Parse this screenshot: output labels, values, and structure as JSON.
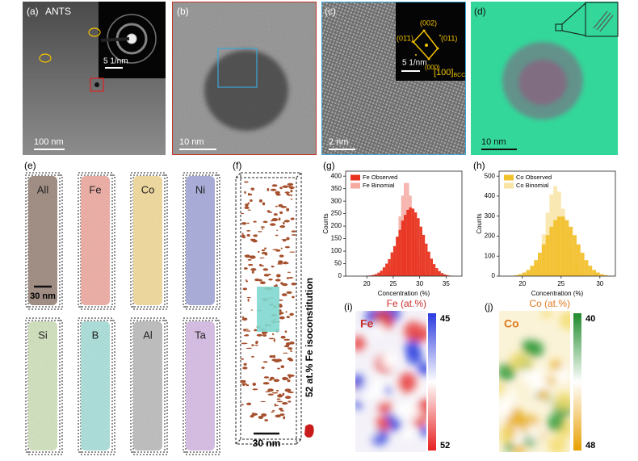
{
  "panel_labels": [
    "(a)",
    "(b)",
    "(c)",
    "(d)",
    "(e)",
    "(f)",
    "(g)",
    "(h)",
    "(i)",
    "(j)"
  ],
  "a": {
    "title": "ANTS",
    "scale_bar": "100 nm",
    "inset_scale_bar": "5 1/nm"
  },
  "b": {
    "scale_bar": "10 nm"
  },
  "c": {
    "scale_bar": "2 nm",
    "inset_scale_bar": "5 1/nm",
    "spots": [
      "(002)",
      "(01̄1)",
      "(011)",
      "(000)"
    ],
    "zone_axis": "[100]",
    "zone_subscript": "BCC"
  },
  "d": {
    "scale_bar": "10 nm"
  },
  "e": {
    "elements": [
      "All",
      "Fe",
      "Co",
      "Ni",
      "Si",
      "B",
      "Al",
      "Ta"
    ],
    "scale_bar": "30 nm"
  },
  "f": {
    "legend": "52 at.% Fe isoconstitution",
    "scale_bar": "30 nm"
  },
  "i": {
    "element": "Fe",
    "colorbar_label": "Fe (at.%)",
    "colorbar_ticks": [
      45,
      52
    ]
  },
  "j": {
    "element": "Co",
    "colorbar_label": "Co (at.%)",
    "colorbar_ticks": [
      40,
      48
    ]
  },
  "chart_data": [
    {
      "type": "histogram",
      "xlabel": "Concentration (%)",
      "ylabel": "Counts",
      "bins": [
        18,
        18.5,
        19,
        19.5,
        20,
        20.5,
        21,
        21.5,
        22,
        22.5,
        23,
        23.5,
        24,
        24.5,
        25,
        25.5,
        26,
        26.5,
        27,
        27.5,
        28,
        28.5,
        29,
        29.5,
        30,
        30.5,
        31,
        31.5,
        32,
        32.5,
        33,
        33.5,
        34,
        34.5,
        35,
        35.5,
        36
      ],
      "series": [
        {
          "name": "Fe Observed",
          "color": "#e8321e",
          "values": [
            0,
            0,
            0,
            1,
            2,
            3,
            5,
            8,
            14,
            22,
            35,
            50,
            68,
            95,
            120,
            158,
            185,
            222,
            245,
            265,
            275,
            270,
            255,
            232,
            198,
            165,
            130,
            98,
            70,
            48,
            32,
            20,
            12,
            7,
            4,
            2
          ]
        },
        {
          "name": "Fe Binomial",
          "color": "#f4a9a1",
          "values": [
            0,
            0,
            0,
            0,
            0,
            0,
            0,
            0,
            0,
            0,
            2,
            6,
            17,
            40,
            85,
            154,
            239,
            322,
            373,
            373,
            322,
            239,
            154,
            85,
            40,
            17,
            6,
            2,
            0,
            0,
            0,
            0,
            0,
            0,
            0,
            0
          ]
        }
      ],
      "xlim": [
        16,
        38
      ],
      "xticks": [
        20,
        25,
        30,
        35
      ],
      "ylim": [
        0,
        420
      ],
      "yticks": [
        0,
        50,
        100,
        150,
        200,
        250,
        300,
        350,
        400
      ]
    },
    {
      "type": "histogram",
      "xlabel": "Concentration (%)",
      "ylabel": "Counts",
      "bins": [
        17,
        17.5,
        18,
        18.5,
        19,
        19.5,
        20,
        20.5,
        21,
        21.5,
        22,
        22.5,
        23,
        23.5,
        24,
        24.5,
        25,
        25.5,
        26,
        26.5,
        27,
        27.5,
        28,
        28.5,
        29,
        29.5,
        30,
        30.5,
        31,
        31.5,
        32
      ],
      "series": [
        {
          "name": "Co Observed",
          "color": "#f2c12e",
          "values": [
            0,
            0,
            1,
            2,
            5,
            10,
            18,
            31,
            52,
            80,
            117,
            159,
            205,
            247,
            280,
            298,
            298,
            280,
            247,
            205,
            159,
            117,
            80,
            52,
            31,
            18,
            10,
            5,
            2,
            1
          ]
        },
        {
          "name": "Co Binomial",
          "color": "#f9e4a4",
          "values": [
            0,
            0,
            0,
            0,
            0,
            1,
            2,
            8,
            23,
            56,
            117,
            209,
            317,
            409,
            450,
            423,
            337,
            230,
            133,
            66,
            28,
            10,
            3,
            1,
            0,
            0,
            0,
            0,
            0,
            0
          ]
        }
      ],
      "xlim": [
        17,
        32
      ],
      "xticks": [
        20,
        25,
        30
      ],
      "ylim": [
        0,
        525
      ],
      "yticks": [
        0,
        100,
        200,
        300,
        400,
        500
      ]
    }
  ]
}
